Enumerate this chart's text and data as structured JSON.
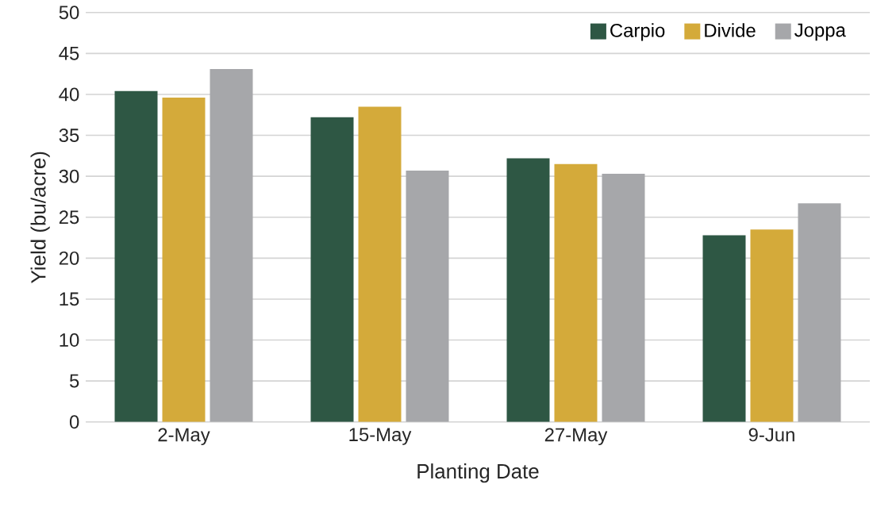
{
  "chart_data": {
    "type": "bar",
    "xlabel": "Planting Date",
    "ylabel": "Yield (bu/acre)",
    "categories": [
      "2-May",
      "15-May",
      "27-May",
      "9-Jun"
    ],
    "series": [
      {
        "name": "Carpio",
        "color": "#2e5744",
        "values": [
          40.4,
          37.2,
          32.2,
          22.8
        ]
      },
      {
        "name": "Divide",
        "color": "#d4aa3a",
        "values": [
          39.6,
          38.5,
          31.5,
          23.5
        ]
      },
      {
        "name": "Joppa",
        "color": "#a6a7aa",
        "values": [
          43.1,
          30.7,
          30.3,
          26.7
        ]
      }
    ],
    "ylim": [
      0,
      50
    ],
    "yticks": [
      0,
      5,
      10,
      15,
      20,
      25,
      30,
      35,
      40,
      45,
      50
    ],
    "grid": "y",
    "legend": "top right"
  }
}
